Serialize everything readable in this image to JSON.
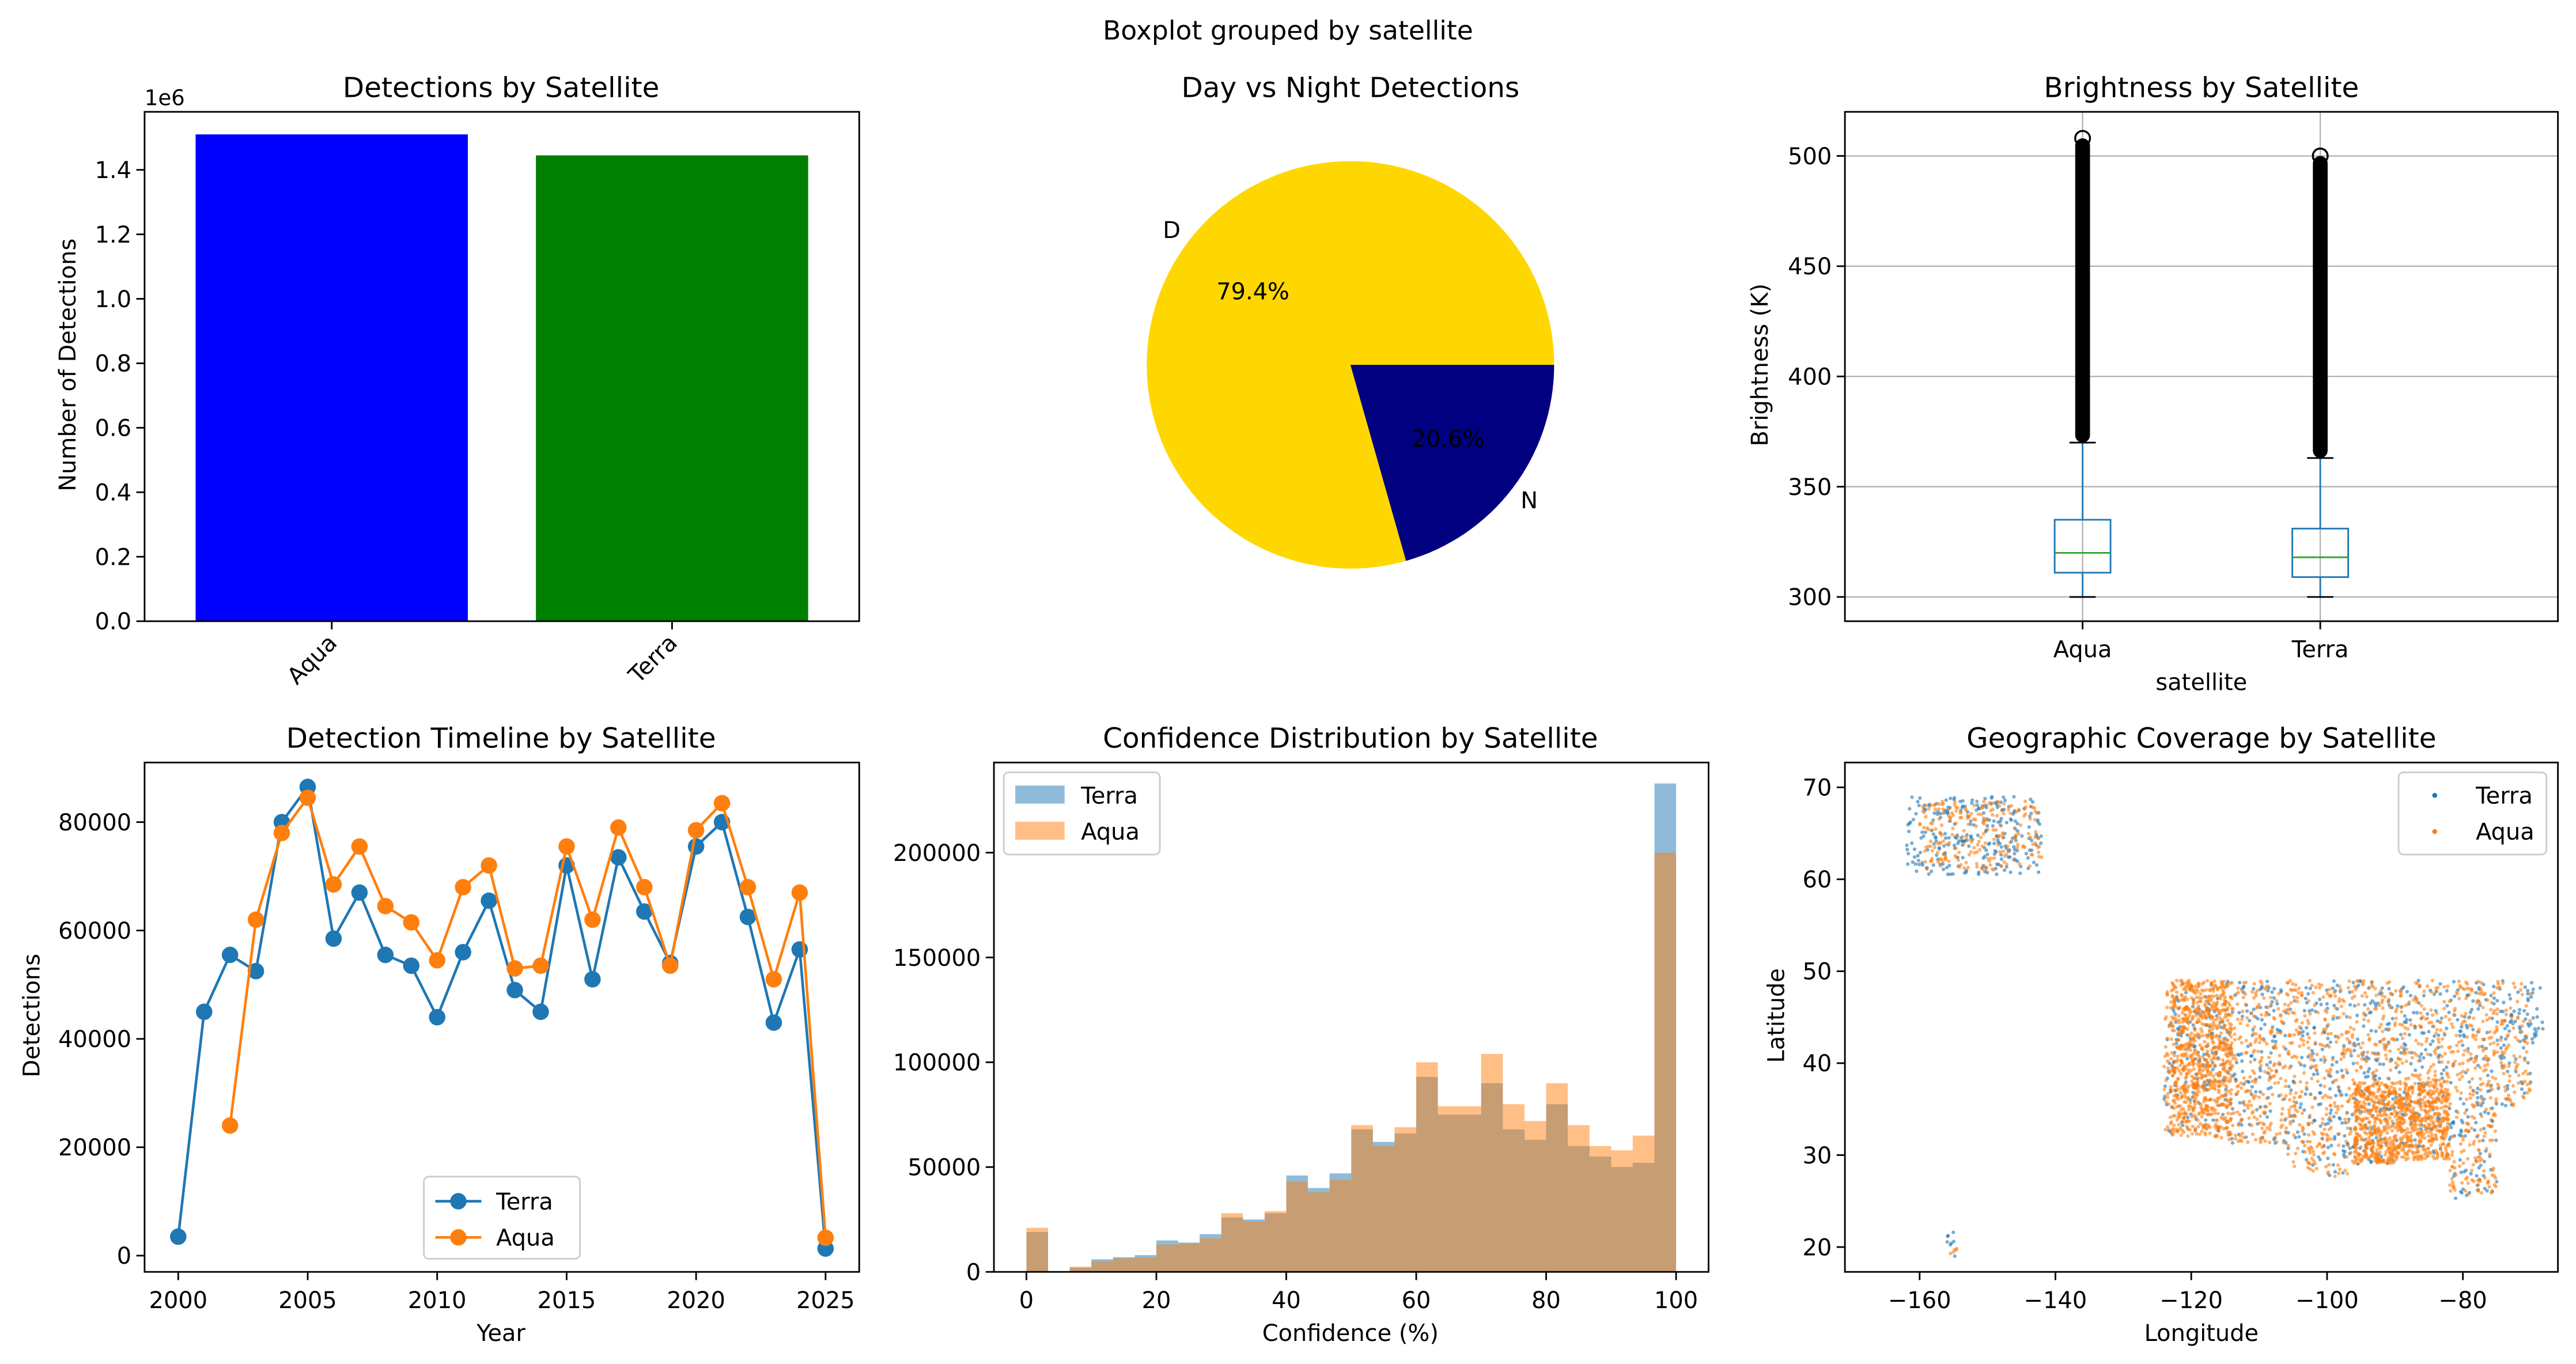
{
  "figure": {
    "suptitle": "Boxplot grouped by satellite"
  },
  "colors": {
    "aqua_bar": "#0000ff",
    "terra_bar": "#008000",
    "pie_day": "#ffd700",
    "pie_night": "#000080",
    "terra": "#1f77b4",
    "aqua": "#ff7f0e",
    "box": "#1f77b4",
    "median": "#2ca02c",
    "grid": "#b0b0b0"
  },
  "chart_data": [
    {
      "type": "bar",
      "title": "Detections by Satellite",
      "categories": [
        "Aqua",
        "Terra"
      ],
      "values": [
        1510000,
        1445000
      ],
      "ylabel": "Number of Detections",
      "xlabel": "",
      "y_offset_label": "1e6",
      "ylim": [
        0,
        1580000
      ],
      "yticks": [
        0,
        0.2,
        0.4,
        0.6,
        0.8,
        1.0,
        1.2,
        1.4
      ],
      "ytick_labels": [
        "0.0",
        "0.2",
        "0.4",
        "0.6",
        "0.8",
        "1.0",
        "1.2",
        "1.4"
      ],
      "xtick_rotation": 45
    },
    {
      "type": "pie",
      "title": "Day vs Night Detections",
      "labels": [
        "D",
        "N"
      ],
      "values": [
        79.4,
        20.6
      ],
      "autopct": [
        "79.4%",
        "20.6%"
      ]
    },
    {
      "type": "box",
      "title": "Brightness by Satellite",
      "xlabel": "satellite",
      "ylabel": "Brightness (K)",
      "categories": [
        "Aqua",
        "Terra"
      ],
      "ylim": [
        289,
        520
      ],
      "yticks": [
        300,
        350,
        400,
        450,
        500
      ],
      "grid": true,
      "boxes": [
        {
          "name": "Aqua",
          "whislo": 300,
          "q1": 311,
          "med": 320,
          "q3": 335,
          "whishi": 370,
          "outliers_min": 370,
          "outliers_max": 508
        },
        {
          "name": "Terra",
          "whislo": 300,
          "q1": 309,
          "med": 318,
          "q3": 331,
          "whishi": 363,
          "outliers_min": 363,
          "outliers_max": 500
        }
      ]
    },
    {
      "type": "line",
      "title": "Detection Timeline by Satellite",
      "xlabel": "Year",
      "ylabel": "Detections",
      "xlim": [
        1998.7,
        2026.3
      ],
      "ylim": [
        -3000,
        91000
      ],
      "xticks": [
        2000,
        2005,
        2010,
        2015,
        2020,
        2025
      ],
      "yticks": [
        0,
        20000,
        40000,
        60000,
        80000
      ],
      "legend_position": "lower center",
      "series": [
        {
          "name": "Terra",
          "x": [
            2000,
            2001,
            2002,
            2003,
            2004,
            2005,
            2006,
            2007,
            2008,
            2009,
            2010,
            2011,
            2012,
            2013,
            2014,
            2015,
            2016,
            2017,
            2018,
            2019,
            2020,
            2021,
            2022,
            2023,
            2024,
            2025
          ],
          "values": [
            3500,
            45000,
            55500,
            52500,
            80000,
            86500,
            58500,
            67000,
            55500,
            53500,
            44000,
            56000,
            65500,
            49000,
            45000,
            72000,
            51000,
            73500,
            63500,
            54000,
            75500,
            80000,
            62500,
            43000,
            56500,
            1300
          ]
        },
        {
          "name": "Aqua",
          "x": [
            2002,
            2003,
            2004,
            2005,
            2006,
            2007,
            2008,
            2009,
            2010,
            2011,
            2012,
            2013,
            2014,
            2015,
            2016,
            2017,
            2018,
            2019,
            2020,
            2021,
            2022,
            2023,
            2024,
            2025
          ],
          "values": [
            24000,
            62000,
            78000,
            84500,
            68500,
            75500,
            64500,
            61500,
            54500,
            68000,
            72000,
            53000,
            53500,
            75500,
            62000,
            79000,
            68000,
            53500,
            78500,
            83500,
            68000,
            51000,
            67000,
            3300
          ]
        }
      ]
    },
    {
      "type": "histogram",
      "title": "Confidence Distribution by Satellite",
      "xlabel": "Confidence (%)",
      "ylabel": "",
      "xlim": [
        -5,
        105
      ],
      "ylim": [
        0,
        243000
      ],
      "xticks": [
        0,
        20,
        40,
        60,
        80,
        100
      ],
      "yticks": [
        0,
        50000,
        100000,
        150000,
        200000
      ],
      "legend_position": "upper left",
      "bin_edges": [
        0,
        3.33,
        6.67,
        10,
        13.33,
        16.67,
        20,
        23.33,
        26.67,
        30,
        33.33,
        36.67,
        40,
        43.33,
        46.67,
        50,
        53.33,
        56.67,
        60,
        63.33,
        66.67,
        70,
        73.33,
        76.67,
        80,
        83.33,
        86.67,
        90,
        93.33,
        96.67,
        100
      ],
      "series": [
        {
          "name": "Terra",
          "values": [
            19000,
            0,
            2000,
            6000,
            7000,
            8000,
            15000,
            14000,
            18000,
            26000,
            25000,
            28000,
            46000,
            40000,
            47000,
            68000,
            62000,
            66000,
            93000,
            75000,
            75000,
            90000,
            68000,
            63000,
            80000,
            60000,
            55000,
            50000,
            52000,
            233000
          ]
        },
        {
          "name": "Aqua",
          "values": [
            21000,
            0,
            2500,
            5000,
            6500,
            7000,
            13000,
            13500,
            16000,
            28000,
            24000,
            29000,
            43000,
            38000,
            44000,
            70000,
            60000,
            69000,
            100000,
            79000,
            79000,
            104000,
            80000,
            72000,
            90000,
            70000,
            60000,
            58000,
            65000,
            200000
          ]
        }
      ]
    },
    {
      "type": "scatter",
      "title": "Geographic Coverage by Satellite",
      "xlabel": "Longitude",
      "ylabel": "Latitude",
      "xlim": [
        -171,
        -66
      ],
      "ylim": [
        17.3,
        72.7
      ],
      "xticks": [
        -160,
        -140,
        -120,
        -100,
        -80
      ],
      "yticks": [
        20,
        30,
        40,
        50,
        60,
        70
      ],
      "legend_position": "upper right",
      "series": [
        {
          "name": "Terra",
          "regions": [
            [
              -162,
              -142,
              60.5,
              69,
              260
            ],
            [
              -124,
              -68,
              25,
              49,
              900
            ],
            [
              -156,
              -154,
              19,
              22,
              8
            ]
          ]
        },
        {
          "name": "Aqua",
          "regions": [
            [
              -160,
              -142,
              61,
              68.5,
              220
            ],
            [
              -124,
              -70,
              25.5,
              49,
              1500
            ],
            [
              -123,
              -114,
              32,
              49,
              600
            ],
            [
              -96,
              -82,
              28,
              38,
              700
            ],
            [
              -155.5,
              -154.5,
              19,
              20,
              5
            ]
          ]
        }
      ]
    }
  ]
}
